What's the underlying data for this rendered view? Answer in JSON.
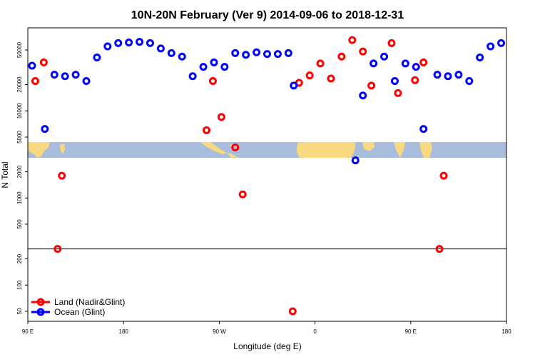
{
  "chart_data": {
    "type": "scatter",
    "title": "10N-20N February (Ver 9)   2014-09-06 to 2018-12-31",
    "xlabel": "Longitude (deg E)",
    "ylabel": "N Total",
    "x_ticks": [
      {
        "value": 90,
        "label": "90 E"
      },
      {
        "value": 180,
        "label": "180"
      },
      {
        "value": 270,
        "label": "90 W"
      },
      {
        "value": 360,
        "label": "0"
      },
      {
        "value": 450,
        "label": "90 E"
      },
      {
        "value": 540,
        "label": "180"
      }
    ],
    "xlim": [
      90,
      540
    ],
    "y_log": true,
    "y_ticks": [
      50,
      100,
      200,
      500,
      1000,
      2000,
      5000,
      10000,
      20000,
      50000
    ],
    "reference_line_y": 260,
    "series": [
      {
        "name": "Land (Nadir&Glint)",
        "color": "#ff0000",
        "points": [
          [
            97,
            22000
          ],
          [
            105,
            36000
          ],
          [
            118,
            260
          ],
          [
            122,
            1800
          ],
          [
            258,
            6000
          ],
          [
            264,
            22000
          ],
          [
            272,
            8500
          ],
          [
            285,
            3800
          ],
          [
            292,
            1100
          ],
          [
            345,
            21000
          ],
          [
            355,
            25500
          ],
          [
            365,
            35000
          ],
          [
            375,
            23500
          ],
          [
            385,
            42000
          ],
          [
            395,
            65000
          ],
          [
            405,
            48000
          ],
          [
            413,
            19500
          ],
          [
            432,
            60000
          ],
          [
            438,
            16000
          ],
          [
            454,
            22500
          ],
          [
            462,
            36000
          ],
          [
            477,
            260
          ],
          [
            481,
            1800
          ],
          [
            339,
            50
          ]
        ]
      },
      {
        "name": "Ocean (Glint)",
        "color": "#0000ff",
        "points": [
          [
            94,
            33000
          ],
          [
            106,
            6200
          ],
          [
            115,
            26000
          ],
          [
            125,
            25000
          ],
          [
            135,
            26000
          ],
          [
            145,
            22000
          ],
          [
            155,
            41000
          ],
          [
            165,
            55000
          ],
          [
            175,
            60000
          ],
          [
            185,
            61000
          ],
          [
            195,
            62000
          ],
          [
            205,
            60000
          ],
          [
            215,
            52000
          ],
          [
            225,
            46000
          ],
          [
            235,
            42000
          ],
          [
            245,
            25000
          ],
          [
            255,
            32000
          ],
          [
            265,
            36000
          ],
          [
            275,
            32000
          ],
          [
            285,
            46000
          ],
          [
            295,
            44000
          ],
          [
            305,
            47000
          ],
          [
            315,
            45000
          ],
          [
            325,
            45000
          ],
          [
            335,
            46000
          ],
          [
            340,
            19500
          ],
          [
            398,
            2700
          ],
          [
            405,
            15000
          ],
          [
            415,
            35000
          ],
          [
            425,
            42000
          ],
          [
            435,
            22000
          ],
          [
            445,
            35000
          ],
          [
            455,
            32000
          ],
          [
            462,
            6200
          ],
          [
            475,
            26000
          ],
          [
            485,
            25000
          ],
          [
            495,
            26000
          ],
          [
            505,
            22000
          ],
          [
            515,
            41000
          ],
          [
            525,
            55000
          ],
          [
            535,
            60000
          ]
        ]
      }
    ],
    "legend_position": "bottom-left",
    "colors": {
      "land": "#ff0000",
      "ocean": "#0000ff",
      "map_ocean": "#a8bddc",
      "map_land": "#f8d982"
    }
  }
}
